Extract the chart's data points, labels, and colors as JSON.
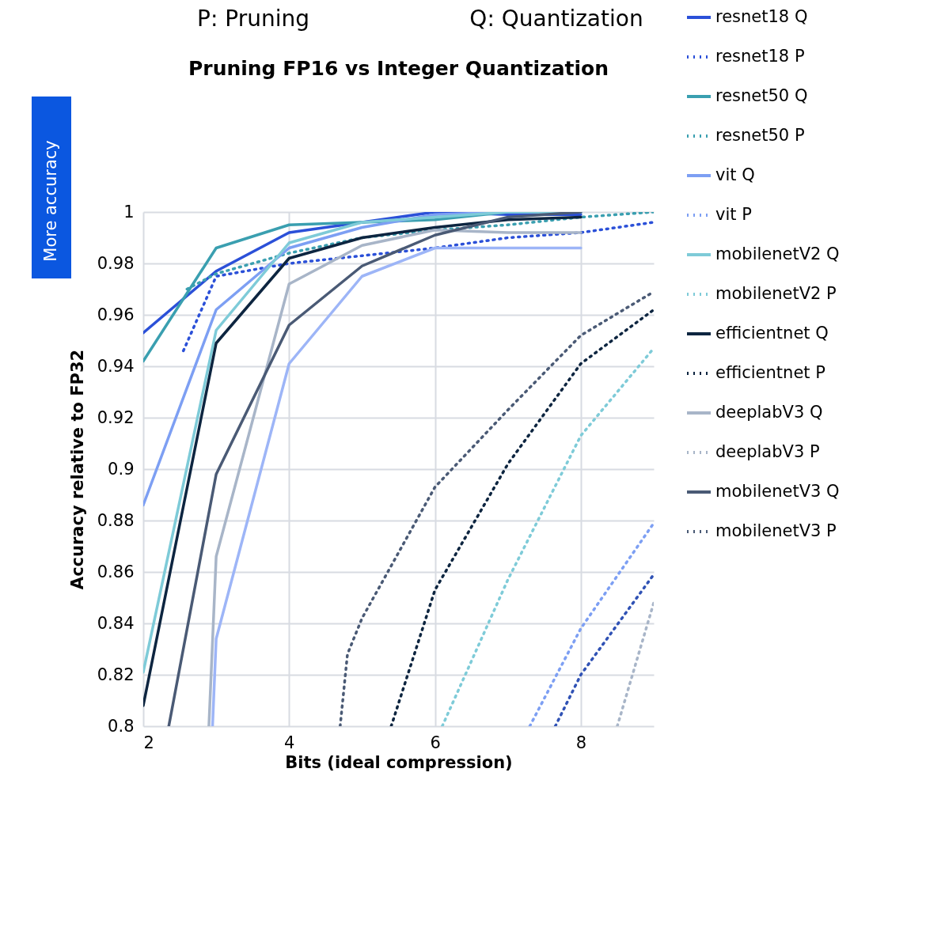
{
  "chart_data": {
    "type": "line",
    "title": "Pruning FP16 vs Integer Quantization",
    "xlabel": "Bits (ideal compression)",
    "ylabel": "Accuracy relative to FP32",
    "annotations": [
      "P: Pruning",
      "Q: Quantization",
      "More accuracy"
    ],
    "xlim": [
      2,
      9
    ],
    "xticks": [
      2,
      4,
      6,
      8
    ],
    "ylim": [
      0.8,
      1
    ],
    "yticks": [
      0.8,
      0.82,
      0.84,
      0.86,
      0.88,
      0.9,
      0.92,
      0.94,
      0.96,
      0.98,
      1
    ],
    "grid": true,
    "legend": "right",
    "series": [
      {
        "name": "resnet18 Q",
        "color": "#2b50d8",
        "line_style": "solid",
        "x": [
          2,
          3,
          4,
          5,
          6,
          7,
          8
        ],
        "values": [
          0.953,
          0.977,
          0.992,
          0.996,
          1.0,
          0.999,
          0.999
        ]
      },
      {
        "name": "resnet18 P",
        "color": "#2b50d8",
        "line_style": "dotted",
        "x": [
          2.55,
          3,
          4,
          5,
          6,
          7,
          8,
          9
        ],
        "values": [
          0.946,
          0.975,
          0.98,
          0.983,
          0.986,
          0.99,
          0.992,
          0.996
        ]
      },
      {
        "name": "resnet50 Q",
        "color": "#3a9fb0",
        "line_style": "solid",
        "x": [
          2,
          3,
          4,
          5,
          6,
          7,
          8
        ],
        "values": [
          0.942,
          0.986,
          0.995,
          0.996,
          0.997,
          1.0,
          1.0
        ]
      },
      {
        "name": "resnet50 P",
        "color": "#3a9fb0",
        "line_style": "dotted",
        "x": [
          2.6,
          3,
          4,
          5,
          6,
          7,
          8,
          9
        ],
        "values": [
          0.97,
          0.976,
          0.984,
          0.99,
          0.993,
          0.995,
          0.998,
          1.0
        ]
      },
      {
        "name": "vit Q",
        "color": "#7d9ff3",
        "line_style": "solid",
        "x": [
          2,
          3,
          4,
          5,
          6,
          7,
          8
        ],
        "values": [
          0.886,
          0.962,
          0.986,
          0.994,
          0.999,
          1.0,
          1.0
        ]
      },
      {
        "name": "vit P",
        "color": "#7d9ff3",
        "line_style": "dotted",
        "x": [
          7.3,
          8,
          9
        ],
        "values": [
          0.8,
          0.838,
          0.879
        ]
      },
      {
        "name": "mobilenetV2 Q",
        "color": "#7ecbd8",
        "line_style": "solid",
        "x": [
          2,
          3,
          4,
          5,
          6,
          7,
          8
        ],
        "values": [
          0.821,
          0.954,
          0.988,
          0.996,
          0.998,
          1.0,
          1.0
        ]
      },
      {
        "name": "mobilenetV2 P",
        "color": "#7ecbd8",
        "line_style": "dotted",
        "x": [
          6.1,
          7,
          8,
          9
        ],
        "values": [
          0.8,
          0.857,
          0.913,
          0.947
        ]
      },
      {
        "name": "efficientnet Q",
        "color": "#0d2540",
        "line_style": "solid",
        "x": [
          2,
          3,
          4,
          5,
          6,
          7,
          8
        ],
        "values": [
          0.808,
          0.949,
          0.982,
          0.99,
          0.994,
          0.997,
          0.998
        ]
      },
      {
        "name": "efficientnet P",
        "color": "#0d2540",
        "line_style": "dotted",
        "x": [
          5.4,
          6,
          7,
          8,
          9
        ],
        "values": [
          0.8,
          0.853,
          0.902,
          0.941,
          0.962
        ]
      },
      {
        "name": "deeplabV3 Q",
        "color": "#a8b5c8",
        "line_style": "solid",
        "x": [
          2.9,
          3,
          4,
          5,
          6,
          7,
          8
        ],
        "values": [
          0.8,
          0.866,
          0.972,
          0.987,
          0.993,
          0.992,
          0.992
        ]
      },
      {
        "name": "deeplabV3 P",
        "color": "#a8b5c8",
        "line_style": "dotted",
        "x": [
          8.5,
          9
        ],
        "values": [
          0.8,
          0.848
        ]
      },
      {
        "name": "mobilenetV3 Q",
        "color": "#4a5a75",
        "line_style": "solid",
        "x": [
          2.35,
          3,
          4,
          5,
          6,
          7,
          8
        ],
        "values": [
          0.8,
          0.898,
          0.956,
          0.979,
          0.991,
          0.998,
          1.0
        ]
      },
      {
        "name": "mobilenetV3 P",
        "color": "#4a5a75",
        "line_style": "dotted",
        "x": [
          4.7,
          4.8,
          5,
          6,
          7,
          8,
          9
        ],
        "values": [
          0.8,
          0.828,
          0.842,
          0.893,
          0.923,
          0.952,
          0.969
        ]
      },
      {
        "color": "#9db5f7",
        "line_style": "solid",
        "x": [
          2.95,
          3,
          4,
          5,
          6,
          7,
          8
        ],
        "values": [
          0.8,
          0.834,
          0.941,
          0.975,
          0.986,
          0.986,
          0.986
        ]
      },
      {
        "color": "#3052b5",
        "line_style": "dotted",
        "x": [
          7.65,
          8,
          9
        ],
        "values": [
          0.8,
          0.82,
          0.859
        ]
      }
    ]
  }
}
